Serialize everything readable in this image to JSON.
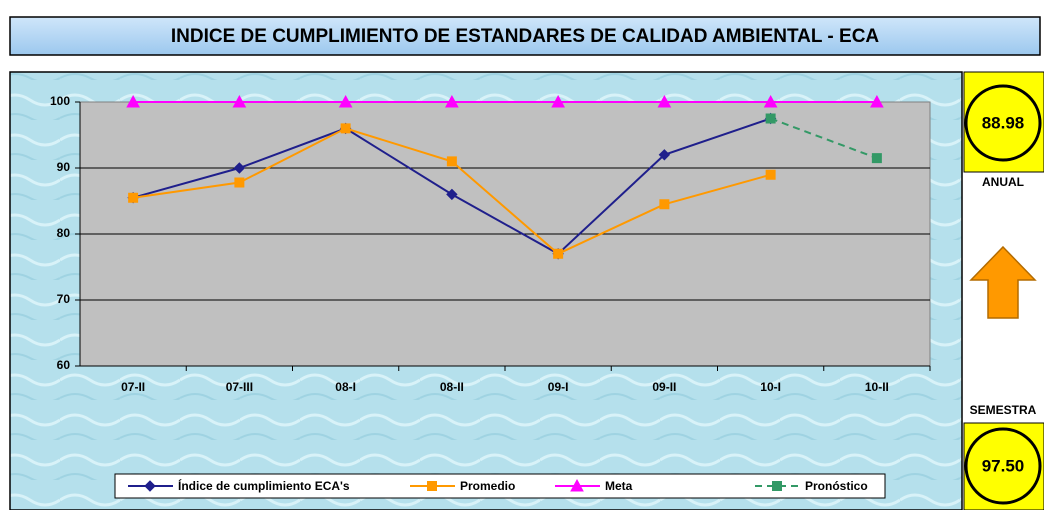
{
  "chart_data": {
    "type": "line",
    "title": "INDICE DE CUMPLIMIENTO DE ESTANDARES DE CALIDAD AMBIENTAL - ECA",
    "categories": [
      "07-II",
      "07-III",
      "08-I",
      "08-II",
      "09-I",
      "09-II",
      "10-I",
      "10-II"
    ],
    "series": [
      {
        "name": "Índice de cumplimiento ECA's",
        "color": "#1f1f8c",
        "marker": "diamond",
        "values": [
          85.5,
          90,
          96,
          86,
          77,
          92,
          97.5,
          null
        ]
      },
      {
        "name": "Promedio",
        "color": "#ff9900",
        "marker": "square",
        "values": [
          85.5,
          87.8,
          96,
          91,
          77,
          84.5,
          88.98,
          null
        ]
      },
      {
        "name": "Meta",
        "color": "#ff00ff",
        "marker": "triangle",
        "values": [
          100,
          100,
          100,
          100,
          100,
          100,
          100,
          100
        ]
      },
      {
        "name": "Pronóstico",
        "color": "#339966",
        "marker": "square",
        "dashed": true,
        "values": [
          null,
          null,
          null,
          null,
          null,
          null,
          97.5,
          91.5
        ]
      }
    ],
    "ylim": [
      60,
      100
    ],
    "yticks": [
      60,
      70,
      80,
      90,
      100
    ],
    "grid": true,
    "legend": "bottom"
  },
  "side_panel": {
    "annual": {
      "value": "88.98",
      "label": "ANUAL"
    },
    "semester": {
      "label": "SEMESTRA",
      "value": "97.50"
    }
  }
}
